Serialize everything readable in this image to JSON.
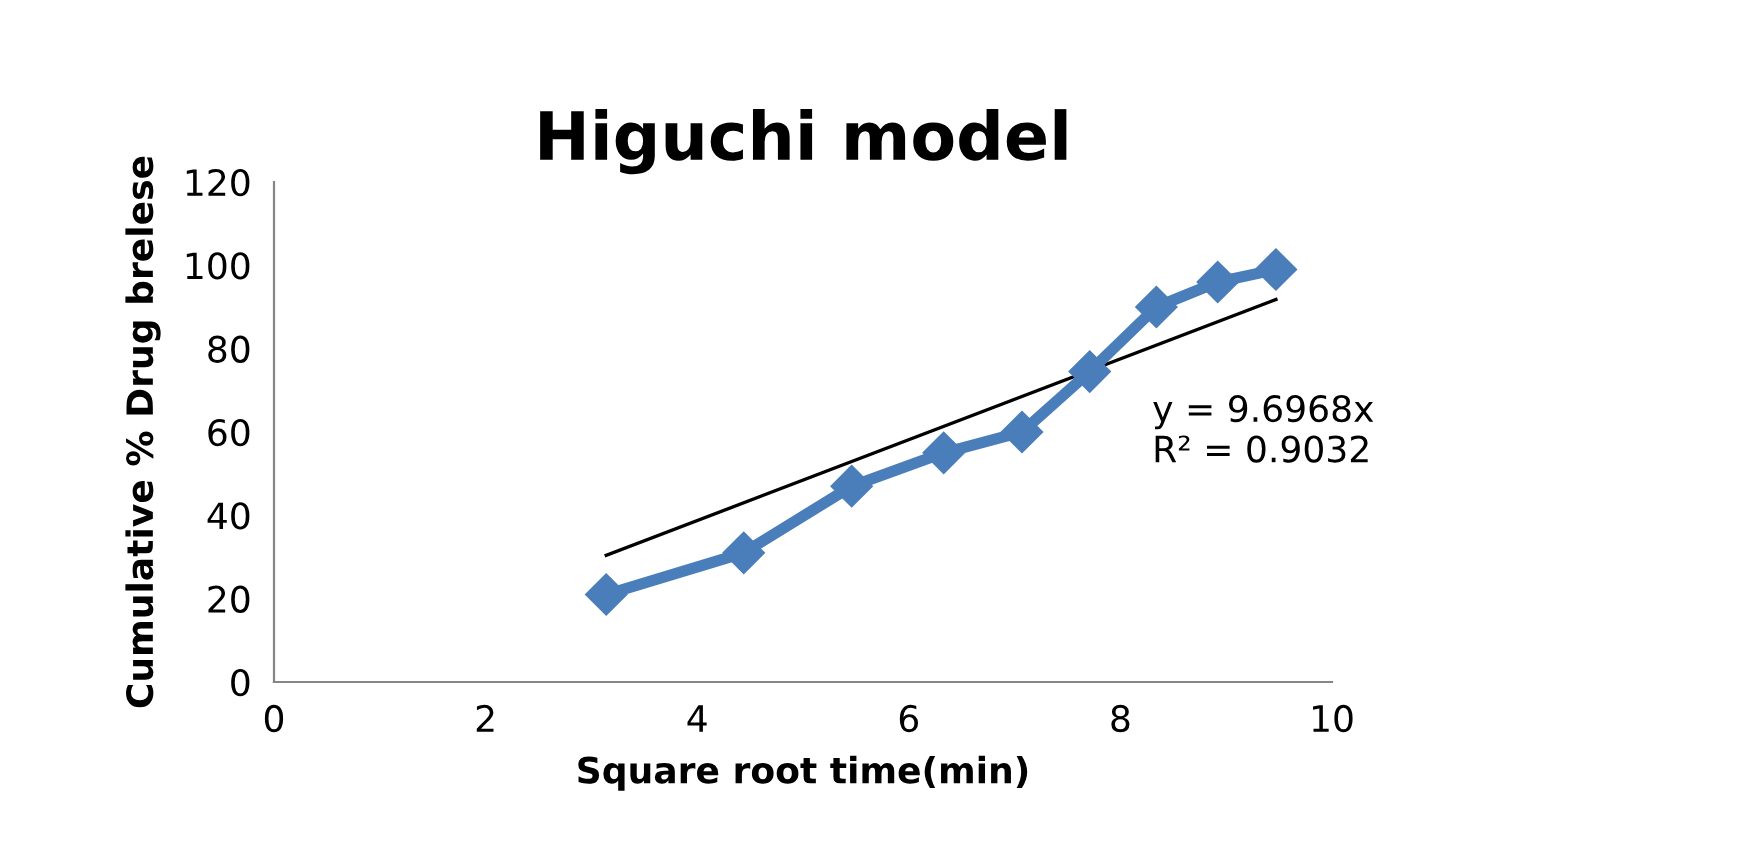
{
  "chart_data": {
    "type": "line",
    "title": "Higuchi model",
    "xlabel": "Square root time(min)",
    "ylabel": "Cumulative % Drug brelese",
    "xlim": [
      0,
      10
    ],
    "xticks": [
      0,
      2,
      4,
      6,
      8,
      10
    ],
    "ylim": [
      0,
      120
    ],
    "yticks": [
      0,
      20,
      40,
      60,
      80,
      100,
      120
    ],
    "grid": false,
    "legend": false,
    "series": [
      {
        "color": "#4a7ebb",
        "marker": "diamond",
        "x": [
          3.14,
          4.44,
          5.46,
          6.33,
          7.07,
          7.71,
          8.34,
          8.92,
          9.47
        ],
        "values": [
          21,
          31,
          47,
          55,
          60,
          74.5,
          90,
          96,
          99
        ]
      },
      {
        "type": "line",
        "color": "#000000",
        "marker": "none",
        "x": [
          3.14,
          9.47
        ],
        "values": [
          30.4,
          91.8
        ]
      }
    ],
    "annotations": [
      "y = 9.6968x\nR² = 0.9032"
    ]
  }
}
